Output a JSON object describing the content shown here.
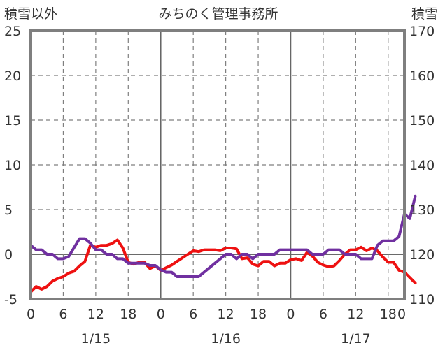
{
  "chart_data": {
    "type": "line",
    "title": "みちのく管理事務所",
    "left_axis_label": "積雪以外",
    "right_axis_label": "積雪",
    "x_unit": "hours",
    "x_range": [
      0,
      69
    ],
    "x_ticks": [
      {
        "x": 0,
        "label": "0"
      },
      {
        "x": 6,
        "label": "6"
      },
      {
        "x": 12,
        "label": "12"
      },
      {
        "x": 18,
        "label": "18"
      },
      {
        "x": 24,
        "label": "0"
      },
      {
        "x": 30,
        "label": "6"
      },
      {
        "x": 36,
        "label": "12"
      },
      {
        "x": 42,
        "label": "18"
      },
      {
        "x": 48,
        "label": "0"
      },
      {
        "x": 54,
        "label": "6"
      },
      {
        "x": 60,
        "label": "12"
      },
      {
        "x": 66,
        "label": "18"
      },
      {
        "x": 72,
        "label": "0"
      }
    ],
    "date_labels": [
      {
        "x": 12,
        "label": "1/15"
      },
      {
        "x": 36,
        "label": "1/16"
      },
      {
        "x": 60,
        "label": "1/17"
      }
    ],
    "y_left": {
      "min": -5,
      "max": 25,
      "ticks": [
        -5,
        0,
        5,
        10,
        15,
        20,
        25
      ]
    },
    "y_right": {
      "min": 110,
      "max": 170,
      "ticks": [
        110,
        120,
        130,
        140,
        150,
        160,
        170
      ]
    },
    "grid": true,
    "series": [
      {
        "axis": "left",
        "color": "#ee1111",
        "values": [
          -4.2,
          -3.6,
          -3.9,
          -3.6,
          -3.0,
          -2.7,
          -2.5,
          -2.1,
          -1.9,
          -1.3,
          -0.8,
          1.0,
          0.8,
          1.0,
          1.0,
          1.2,
          1.6,
          0.7,
          -0.9,
          -1.1,
          -0.9,
          -0.9,
          -1.6,
          -1.3,
          -1.8,
          -1.5,
          -1.2,
          -0.8,
          -0.4,
          0.0,
          0.4,
          0.3,
          0.5,
          0.5,
          0.5,
          0.4,
          0.7,
          0.7,
          0.6,
          -0.5,
          -0.4,
          -1.1,
          -1.3,
          -0.8,
          -0.8,
          -1.3,
          -1.0,
          -1.0,
          -0.6,
          -0.5,
          -0.7,
          0.2,
          -0.2,
          -0.9,
          -1.2,
          -1.4,
          -1.3,
          -0.7,
          0.0,
          0.5,
          0.5,
          0.8,
          0.4,
          0.7,
          0.4,
          -0.3,
          -0.9,
          -0.9,
          -1.8,
          -2.0,
          -2.6,
          -3.2
        ]
      },
      {
        "axis": "right",
        "color": "#7030a0",
        "values": [
          122.0,
          121.0,
          121.0,
          120.0,
          120.0,
          119.0,
          119.0,
          119.5,
          121.5,
          123.5,
          123.5,
          122.5,
          121.0,
          121.0,
          120.0,
          120.0,
          119.0,
          119.0,
          118.0,
          118.0,
          118.0,
          118.0,
          117.5,
          117.5,
          116.5,
          116.0,
          116.0,
          115.0,
          115.0,
          115.0,
          115.0,
          115.0,
          116.0,
          117.0,
          118.0,
          119.0,
          120.0,
          120.0,
          119.0,
          120.0,
          120.0,
          119.0,
          120.0,
          120.0,
          120.0,
          120.0,
          121.0,
          121.0,
          121.0,
          121.0,
          121.0,
          121.0,
          120.0,
          120.0,
          120.0,
          121.0,
          121.0,
          121.0,
          120.0,
          120.0,
          120.0,
          119.0,
          119.0,
          119.0,
          122.0,
          123.0,
          123.0,
          123.0,
          124.0,
          129.0,
          128.0,
          133.0
        ]
      }
    ]
  }
}
